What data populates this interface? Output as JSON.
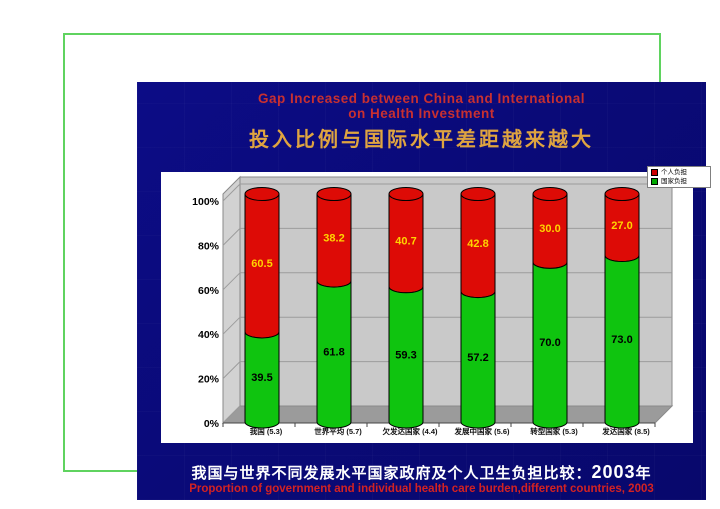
{
  "slide": {
    "title_en_line1": "Gap Increased between China and International",
    "title_en_line2": "on Health Investment",
    "title_zh": "投入比例与国际水平差距越来越大",
    "caption_zh": "我国与世界不同发展水平国家政府及个人卫生负担比较：",
    "caption_year": "2003",
    "caption_year_suffix": "年",
    "caption_en": "Proportion of government and individual health care burden,different countries, 2003",
    "colors": {
      "frame_green": "#5fd35f",
      "navy_background": "#0a0a78",
      "title_red": "#c93030",
      "title_gold": "#dfa440",
      "caption_red": "#d42222"
    }
  },
  "chart_data": {
    "type": "bar",
    "subtype": "3d-stacked-cylinder",
    "title": "",
    "categories": [
      "我国 (5.3)",
      "世界平均 (5.7)",
      "欠发达国家 (4.4)",
      "发展中国家 (5.6)",
      "转型国家 (5.3)",
      "发达国家 (8.5)"
    ],
    "series": [
      {
        "name": "国家负担",
        "color": "#0fc40f",
        "label_color": "#000000",
        "values": [
          39.5,
          61.8,
          59.3,
          57.2,
          70.0,
          73.0
        ]
      },
      {
        "name": "个人负担",
        "color": "#dd0b06",
        "label_color": "#ffd400",
        "values": [
          60.5,
          38.2,
          40.7,
          42.8,
          30.0,
          27.0
        ]
      }
    ],
    "legend": [
      {
        "label": "个人负担",
        "color": "#cc0000"
      },
      {
        "label": "国家负担",
        "color": "#00a800"
      }
    ],
    "legend_position": "top-right",
    "yticks": [
      "0%",
      "20%",
      "40%",
      "60%",
      "80%",
      "100%"
    ],
    "ylim": [
      0,
      100
    ],
    "grid": true,
    "wall_color": "#c9c9c9",
    "floor_color": "#9b9b9b"
  }
}
